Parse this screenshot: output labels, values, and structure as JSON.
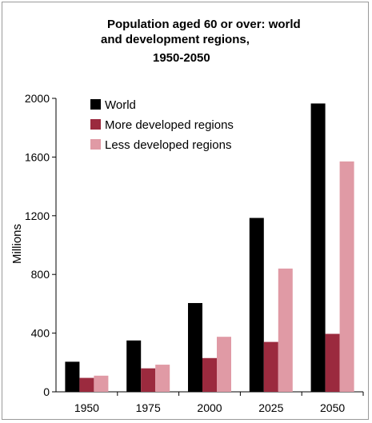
{
  "chart_data": {
    "type": "bar",
    "title_lines": [
      "Population aged 60 or over: world",
      "and development regions,",
      "1950-2050"
    ],
    "xlabel": "",
    "ylabel": "Millions",
    "categories": [
      "1950",
      "1975",
      "2000",
      "2025",
      "2050"
    ],
    "series": [
      {
        "name": "World",
        "values": [
          205,
          350,
          605,
          1185,
          1965
        ],
        "color": "#000000"
      },
      {
        "name": "More developed regions",
        "values": [
          95,
          160,
          230,
          340,
          395
        ],
        "color": "#9b2a3e"
      },
      {
        "name": "Less developed regions",
        "values": [
          110,
          185,
          375,
          840,
          1570
        ],
        "color": "#e09aa5"
      }
    ],
    "ylim": [
      0,
      2000
    ],
    "yticks": [
      "0",
      "400",
      "800",
      "1200",
      "1600",
      "2000"
    ],
    "ytick_values": [
      0,
      400,
      800,
      1200,
      1600,
      2000
    ],
    "grid": false,
    "legend_position": "top-left"
  }
}
